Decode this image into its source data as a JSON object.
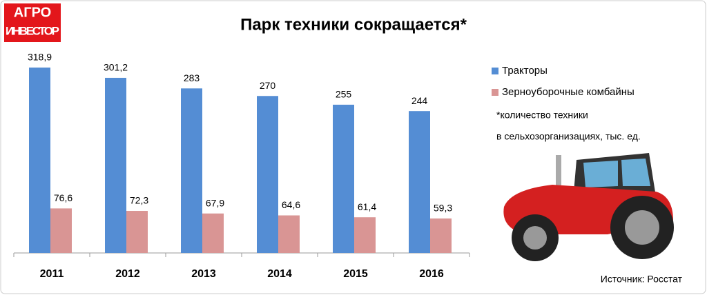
{
  "logo": {
    "line1": "АГРО",
    "line2": "ИНВЕСТОР"
  },
  "chart_data": {
    "type": "bar",
    "title": "Парк техники сокращается*",
    "categories": [
      "2011",
      "2012",
      "2013",
      "2014",
      "2015",
      "2016"
    ],
    "series": [
      {
        "name": "Тракторы",
        "color": "#548dd4",
        "values": [
          318.9,
          301.2,
          283,
          270,
          255,
          244
        ],
        "value_labels": [
          "318,9",
          "301,2",
          "283",
          "270",
          "255",
          "244"
        ]
      },
      {
        "name": "Зерноуборочные комбайны",
        "color": "#d99594",
        "values": [
          76.6,
          72.3,
          67.9,
          64.6,
          61.4,
          59.3
        ],
        "value_labels": [
          "76,6",
          "72,3",
          "67,9",
          "64,6",
          "61,4",
          "59,3"
        ]
      }
    ],
    "legend": "right",
    "note": [
      "*количество техники",
      "в сельхозорганизациях, тыс. ед."
    ],
    "source": "Источник: Росстат"
  }
}
